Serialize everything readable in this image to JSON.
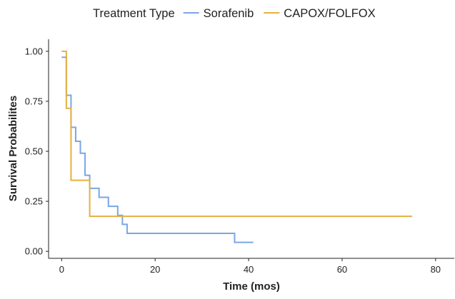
{
  "chart_data": {
    "type": "line",
    "title": "",
    "xlabel": "Time (mos)",
    "ylabel": "Survival Probabilites",
    "xlim": [
      -2.8,
      84
    ],
    "ylim": [
      -0.035,
      1.06
    ],
    "xticks": [
      0,
      20,
      40,
      60,
      80
    ],
    "yticks": [
      0,
      0.25,
      0.5,
      0.75,
      1
    ],
    "xtick_labels": [
      "0",
      "20",
      "40",
      "60",
      "80"
    ],
    "ytick_labels": [
      "0.00",
      "0.25",
      "0.50",
      "0.75",
      "1.00"
    ],
    "grid": false,
    "legend": {
      "title": "Treatment Type",
      "position": "top"
    },
    "series": [
      {
        "name": "Sorafenib",
        "color": "#7aa6e6",
        "step": true,
        "x": [
          0,
          1,
          2,
          3,
          4,
          5,
          6,
          8,
          10,
          12,
          13,
          14,
          37,
          41
        ],
        "y": [
          0.97,
          0.78,
          0.62,
          0.55,
          0.49,
          0.38,
          0.315,
          0.27,
          0.225,
          0.18,
          0.135,
          0.09,
          0.045,
          0.045
        ]
      },
      {
        "name": "CAPOX/FOLFOX",
        "color": "#e6b040",
        "step": true,
        "x": [
          0,
          1,
          2,
          6,
          75
        ],
        "y": [
          1.0,
          0.715,
          0.355,
          0.175,
          0.175
        ]
      }
    ]
  }
}
